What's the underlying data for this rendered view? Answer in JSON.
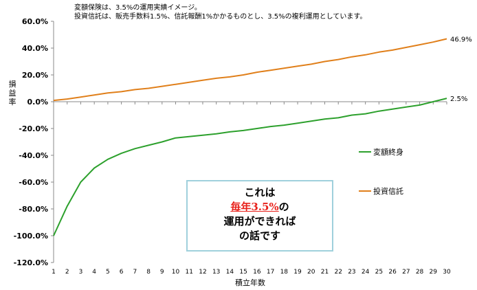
{
  "notes": {
    "line1": "変額保険は、3.5%の運用実績イメージ。",
    "line2": "投資信託は、販売手数料1.5%、信託報酬1%かかるものとし、3.5%の複利運用としています。"
  },
  "callout": {
    "line1": "これは",
    "line2_highlight": "毎年3.5%",
    "line2_rest": "の",
    "line3": "運用ができれば",
    "line4": "の話です"
  },
  "colors": {
    "series1": "#2ca02c",
    "series2": "#e07f1a",
    "callout_border": "#9fd0dc",
    "highlight": "#e8201a"
  },
  "chart_data": {
    "type": "line",
    "xlabel": "積立年数",
    "ylabel": "損益率",
    "x": [
      1,
      2,
      3,
      4,
      5,
      6,
      7,
      8,
      9,
      10,
      11,
      12,
      13,
      14,
      15,
      16,
      17,
      18,
      19,
      20,
      21,
      22,
      23,
      24,
      25,
      26,
      27,
      28,
      29,
      30
    ],
    "ylim": [
      -120,
      60
    ],
    "yticks": [
      "60.0%",
      "40.0%",
      "20.0%",
      "0.0%",
      "-20.0%",
      "-40.0%",
      "-60.0%",
      "-80.0%",
      "-100.0%",
      "-120.0%"
    ],
    "ytick_values": [
      60,
      40,
      20,
      0,
      -20,
      -40,
      -60,
      -80,
      -100,
      -120
    ],
    "grid": false,
    "legend_position": "right",
    "series": [
      {
        "name": "変額終身",
        "end_label": "2.5%",
        "values": [
          -100,
          -78,
          -60,
          -49.5,
          -43,
          -38.5,
          -35,
          -32.5,
          -30,
          -27,
          -26,
          -25,
          -24,
          -22.5,
          -21.5,
          -20,
          -18.5,
          -17.5,
          -16,
          -14.5,
          -13,
          -12,
          -10,
          -9,
          -7,
          -5.5,
          -4,
          -2.5,
          0,
          2.5
        ]
      },
      {
        "name": "投資信託",
        "end_label": "46.9%",
        "values": [
          1,
          2,
          3.5,
          5,
          6.5,
          7.5,
          9,
          10,
          11.5,
          13,
          14.5,
          16,
          17.5,
          18.5,
          20,
          22,
          23.5,
          25,
          26.5,
          28,
          30,
          31.5,
          33.5,
          35,
          37,
          38.5,
          40.5,
          42.5,
          44.5,
          46.9
        ]
      }
    ]
  }
}
